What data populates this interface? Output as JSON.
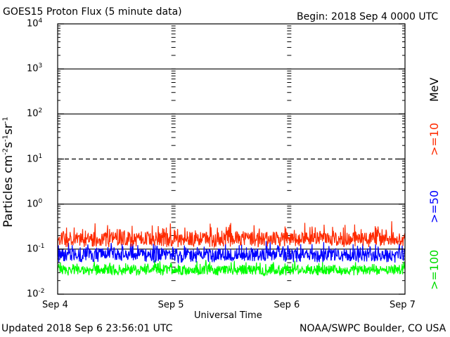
{
  "title": "GOES15 Proton Flux (5 minute data)",
  "begin": "Begin: 2018 Sep 4 0000 UTC",
  "updated": "Updated 2018 Sep  6 23:56:01 UTC",
  "source": "NOAA/SWPC Boulder, CO USA",
  "chart_data": {
    "type": "line",
    "title": "GOES15 Proton Flux (5 minute data)",
    "xlabel": "Universal Time",
    "ylabel": "Particles cm-2 s-1 sr-1",
    "yscale": "log",
    "ylim": [
      0.01,
      10000
    ],
    "y_ticks": [
      {
        "base": "10",
        "exp": "-2",
        "value": 0.01
      },
      {
        "base": "10",
        "exp": "-1",
        "value": 0.1
      },
      {
        "base": "10",
        "exp": "0",
        "value": 1
      },
      {
        "base": "10",
        "exp": "1",
        "value": 10
      },
      {
        "base": "10",
        "exp": "2",
        "value": 100
      },
      {
        "base": "10",
        "exp": "3",
        "value": 1000
      },
      {
        "base": "10",
        "exp": "4",
        "value": 10000
      }
    ],
    "x_ticks": [
      "Sep 4",
      "Sep 5",
      "Sep 6",
      "Sep 7"
    ],
    "xlim": [
      "2018-09-04",
      "2018-09-07"
    ],
    "unit_label": "MeV",
    "series": [
      {
        "name": ">=10",
        "color": "#ff2a00",
        "typical": 0.17,
        "min": 0.11,
        "max": 0.45
      },
      {
        "name": ">=50",
        "color": "#0000ff",
        "typical": 0.075,
        "min": 0.05,
        "max": 0.16
      },
      {
        "name": ">=100",
        "color": "#00ff00",
        "typical": 0.035,
        "min": 0.026,
        "max": 0.06
      }
    ]
  }
}
